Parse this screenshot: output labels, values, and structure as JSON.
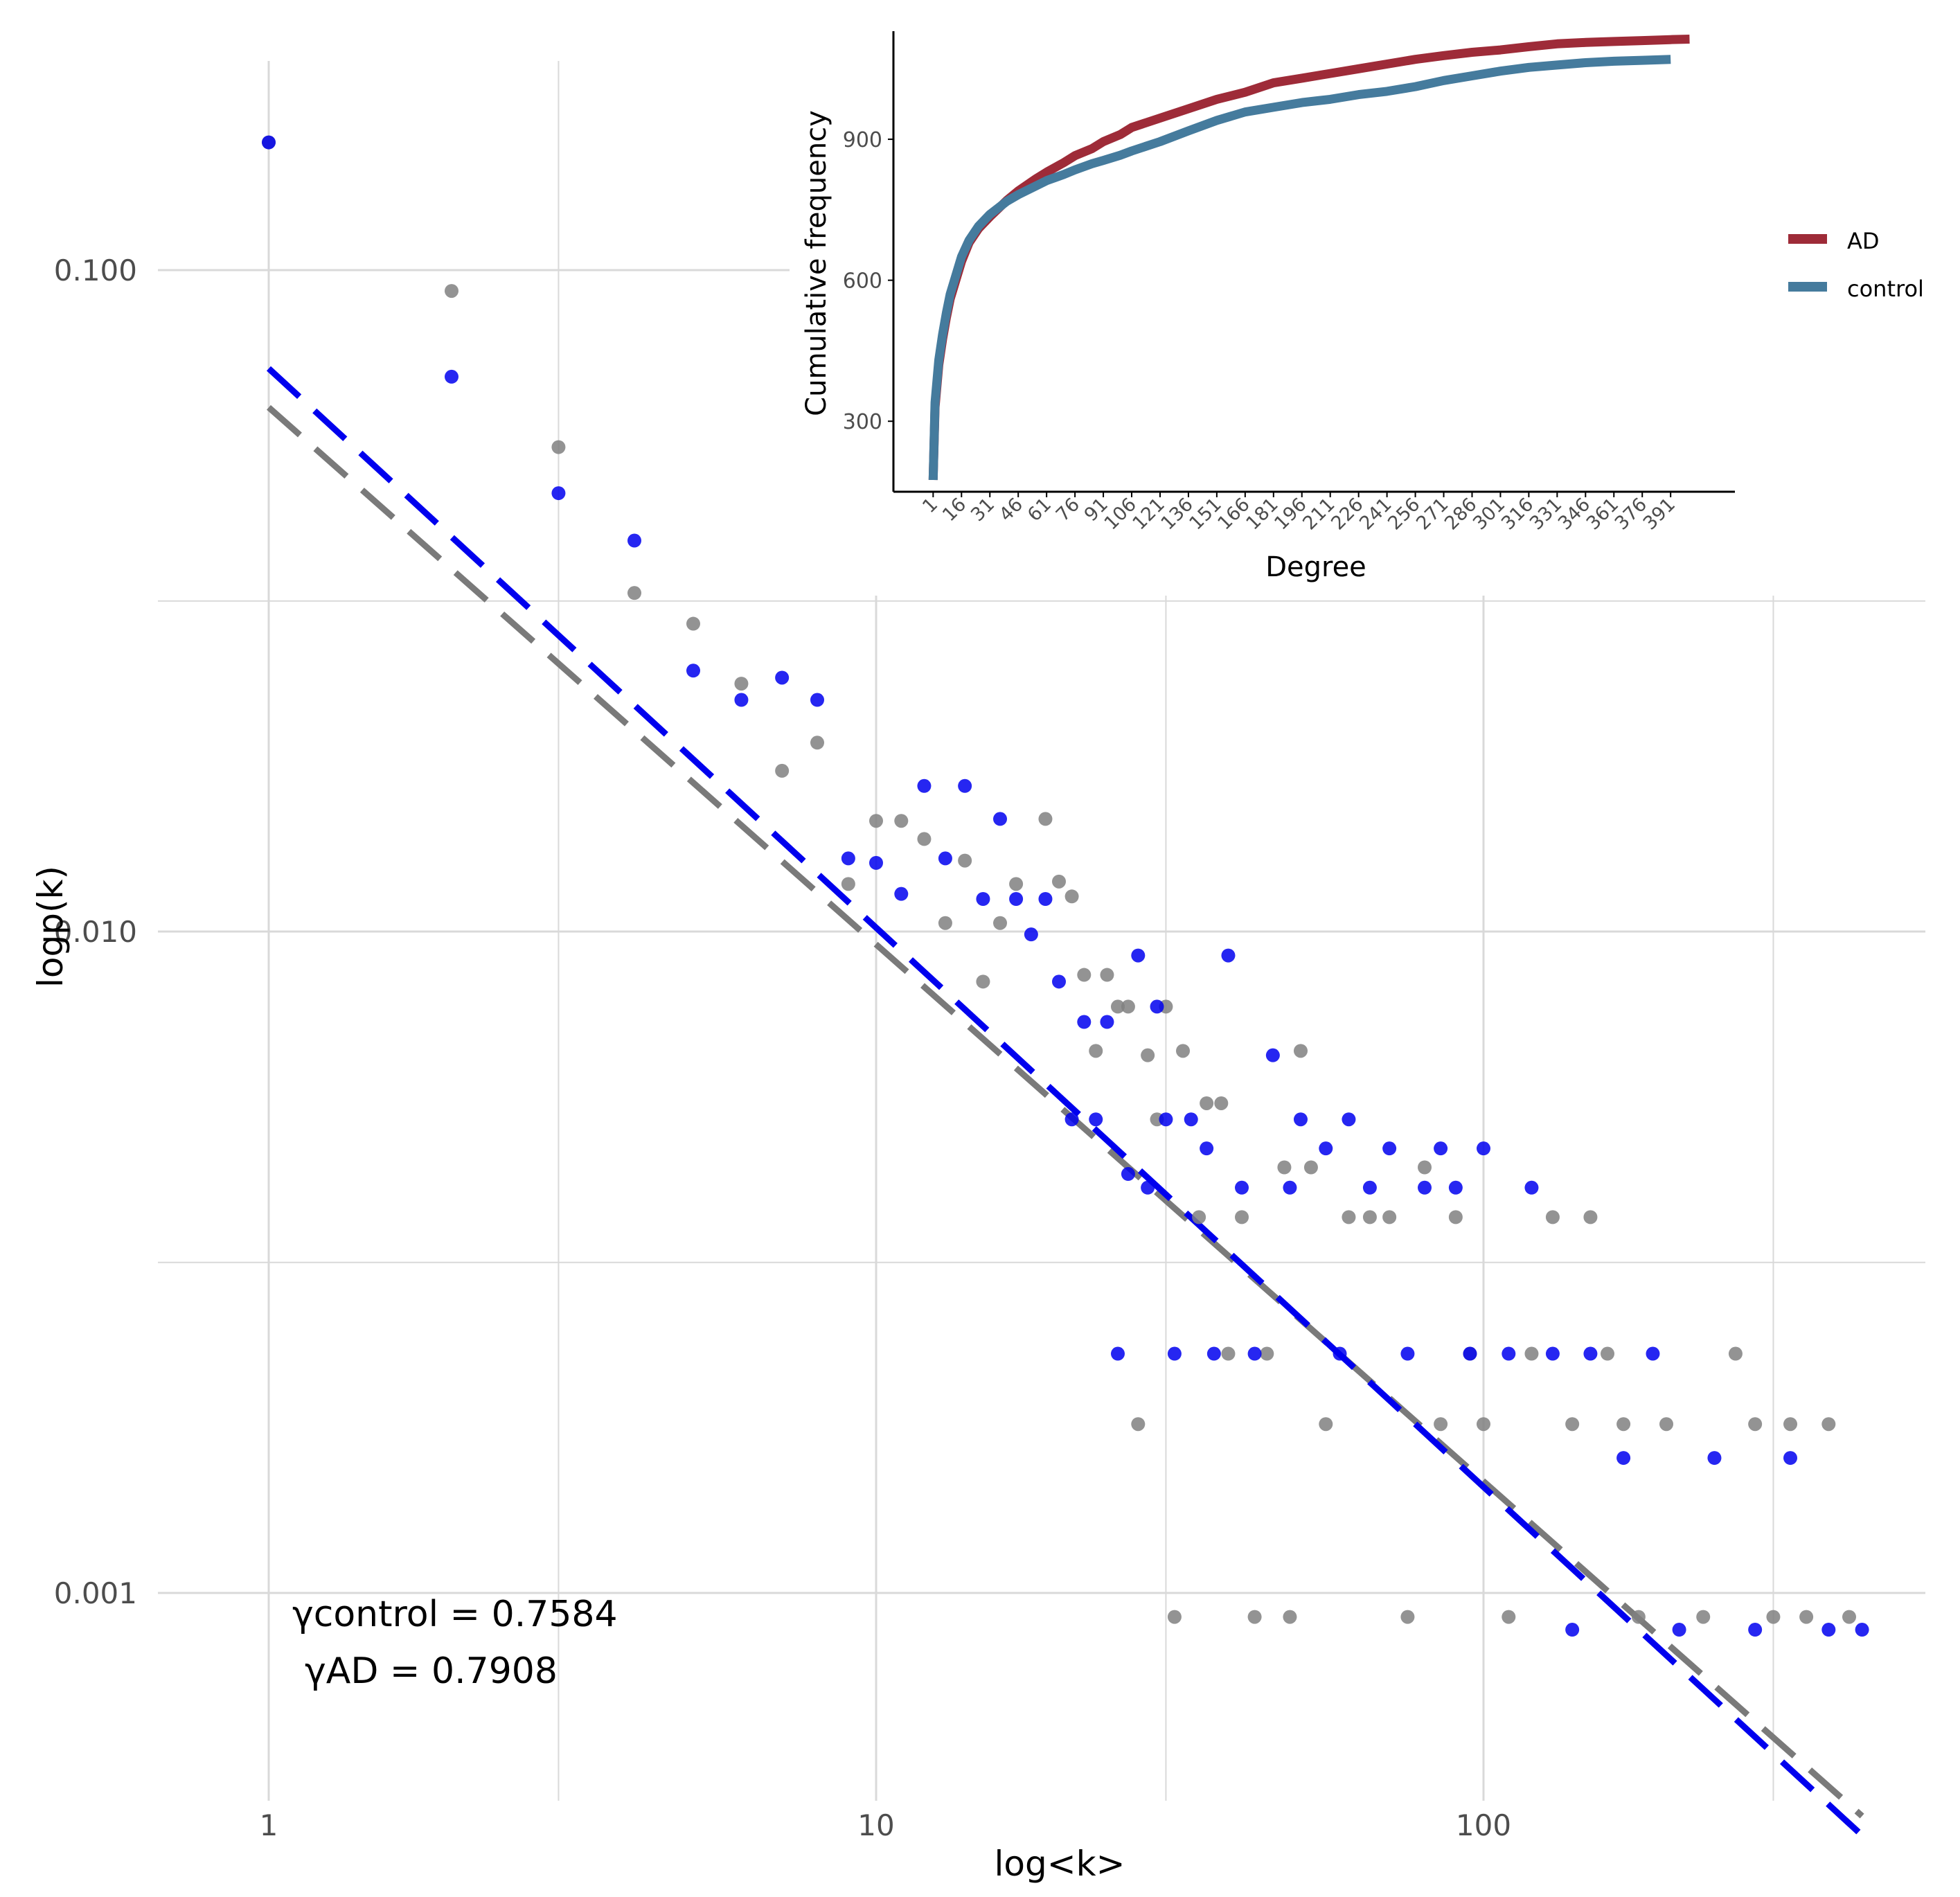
{
  "colors": {
    "control_points": "#808080",
    "ad_points": "#0000ee",
    "control_fit": "#7a7a7a",
    "ad_fit": "#0000ee",
    "grid": "#d9d9d9",
    "axis": "#000000",
    "inset_ad": "#9e2b38",
    "inset_control": "#457b9d",
    "text_axis": "#4d4d4d"
  },
  "chart_data": [
    {
      "type": "scatter",
      "title": "",
      "xlabel": "log<k>",
      "ylabel": "logp(k)",
      "xscale": "log",
      "yscale": "log",
      "xlim": [
        0.8,
        500
      ],
      "ylim": [
        0.00035,
        0.21
      ],
      "x_ticks": [
        1,
        10,
        100
      ],
      "x_tick_labels": [
        "1",
        "10",
        "100"
      ],
      "y_ticks": [
        0.1,
        0.01,
        0.001
      ],
      "y_tick_labels": [
        "0.100",
        "0.010",
        "0.001"
      ],
      "annotations": [
        "γcontrol = 0.7584",
        "γAD = 0.7908"
      ],
      "series": [
        {
          "name": "control",
          "points": [
            [
              1,
              0.156
            ],
            [
              2,
              0.093
            ],
            [
              3,
              0.054
            ],
            [
              4,
              0.0325
            ],
            [
              5,
              0.0292
            ],
            [
              6,
              0.0237
            ],
            [
              7,
              0.0175
            ],
            [
              8,
              0.0193
            ],
            [
              9,
              0.0118
            ],
            [
              10,
              0.0147
            ],
            [
              11,
              0.0147
            ],
            [
              12,
              0.0138
            ],
            [
              13,
              0.0103
            ],
            [
              14,
              0.0128
            ],
            [
              15,
              0.0084
            ],
            [
              16,
              0.0103
            ],
            [
              17,
              0.0118
            ],
            [
              19,
              0.0148
            ],
            [
              20,
              0.0119
            ],
            [
              21,
              0.0113
            ],
            [
              22,
              0.0086
            ],
            [
              23,
              0.0066
            ],
            [
              24,
              0.0086
            ],
            [
              25,
              0.0077
            ],
            [
              26,
              0.0077
            ],
            [
              27,
              0.0018
            ],
            [
              28,
              0.0065
            ],
            [
              29,
              0.0052
            ],
            [
              30,
              0.0077
            ],
            [
              31,
              0.00092
            ],
            [
              32,
              0.0066
            ],
            [
              34,
              0.0037
            ],
            [
              35,
              0.0055
            ],
            [
              37,
              0.0055
            ],
            [
              38,
              0.0023
            ],
            [
              40,
              0.0037
            ],
            [
              42,
              0.00092
            ],
            [
              44,
              0.0023
            ],
            [
              47,
              0.0044
            ],
            [
              48,
              0.00092
            ],
            [
              50,
              0.0066
            ],
            [
              52,
              0.0044
            ],
            [
              55,
              0.0018
            ],
            [
              60,
              0.0037
            ],
            [
              65,
              0.0037
            ],
            [
              70,
              0.0037
            ],
            [
              75,
              0.00092
            ],
            [
              80,
              0.0044
            ],
            [
              85,
              0.0018
            ],
            [
              90,
              0.0037
            ],
            [
              95,
              0.0023
            ],
            [
              100,
              0.0018
            ],
            [
              110,
              0.00092
            ],
            [
              120,
              0.0023
            ],
            [
              130,
              0.0037
            ],
            [
              140,
              0.0018
            ],
            [
              150,
              0.0037
            ],
            [
              160,
              0.0023
            ],
            [
              170,
              0.0018
            ],
            [
              180,
              0.00092
            ],
            [
              200,
              0.0018
            ],
            [
              230,
              0.00092
            ],
            [
              260,
              0.0023
            ],
            [
              280,
              0.0018
            ],
            [
              300,
              0.00092
            ],
            [
              320,
              0.0018
            ],
            [
              340,
              0.00092
            ],
            [
              370,
              0.0018
            ],
            [
              400,
              0.00092
            ]
          ]
        },
        {
          "name": "AD",
          "points": [
            [
              1,
              0.156
            ],
            [
              2,
              0.069
            ],
            [
              3,
              0.046
            ],
            [
              4,
              0.039
            ],
            [
              5,
              0.0248
            ],
            [
              6,
              0.0224
            ],
            [
              7,
              0.0242
            ],
            [
              8,
              0.0224
            ],
            [
              9,
              0.0129
            ],
            [
              10,
              0.0127
            ],
            [
              11,
              0.0114
            ],
            [
              12,
              0.0166
            ],
            [
              13,
              0.0129
            ],
            [
              14,
              0.0166
            ],
            [
              15,
              0.0112
            ],
            [
              16,
              0.0148
            ],
            [
              17,
              0.0112
            ],
            [
              18,
              0.0099
            ],
            [
              19,
              0.0112
            ],
            [
              20,
              0.0084
            ],
            [
              21,
              0.0052
            ],
            [
              22,
              0.0073
            ],
            [
              23,
              0.0052
            ],
            [
              24,
              0.0073
            ],
            [
              25,
              0.0023
            ],
            [
              26,
              0.0043
            ],
            [
              27,
              0.0092
            ],
            [
              28,
              0.0041
            ],
            [
              29,
              0.0077
            ],
            [
              30,
              0.0052
            ],
            [
              31,
              0.0023
            ],
            [
              33,
              0.0052
            ],
            [
              35,
              0.0047
            ],
            [
              36,
              0.0023
            ],
            [
              38,
              0.0092
            ],
            [
              40,
              0.0041
            ],
            [
              42,
              0.0023
            ],
            [
              45,
              0.0065
            ],
            [
              48,
              0.0041
            ],
            [
              50,
              0.0052
            ],
            [
              55,
              0.0047
            ],
            [
              58,
              0.0023
            ],
            [
              60,
              0.0052
            ],
            [
              65,
              0.0041
            ],
            [
              70,
              0.0047
            ],
            [
              75,
              0.0023
            ],
            [
              80,
              0.0041
            ],
            [
              85,
              0.0047
            ],
            [
              90,
              0.0041
            ],
            [
              95,
              0.0023
            ],
            [
              100,
              0.0047
            ],
            [
              110,
              0.0023
            ],
            [
              120,
              0.0041
            ],
            [
              130,
              0.0023
            ],
            [
              140,
              0.00088
            ],
            [
              150,
              0.0023
            ],
            [
              170,
              0.0016
            ],
            [
              190,
              0.0023
            ],
            [
              210,
              0.00088
            ],
            [
              240,
              0.0016
            ],
            [
              280,
              0.00088
            ],
            [
              320,
              0.0016
            ],
            [
              370,
              0.00088
            ],
            [
              420,
              0.00088
            ]
          ]
        }
      ],
      "fit_lines": [
        {
          "name": "control fit",
          "x": [
            1,
            420
          ],
          "y": [
            0.062,
            0.00046
          ]
        },
        {
          "name": "AD fit",
          "x": [
            1,
            420
          ],
          "y": [
            0.071,
            0.00043
          ]
        }
      ]
    },
    {
      "type": "line",
      "title": "",
      "xlabel": "Degree",
      "ylabel": "Cumulative frequency",
      "xlim": [
        -20,
        425
      ],
      "ylim": [
        150,
        1130
      ],
      "x_tick_labels": [
        "1",
        "16",
        "31",
        "46",
        "61",
        "76",
        "91",
        "106",
        "121",
        "136",
        "151",
        "166",
        "181",
        "196",
        "211",
        "226",
        "241",
        "256",
        "271",
        "286",
        "301",
        "316",
        "331",
        "346",
        "361",
        "376",
        "391"
      ],
      "y_ticks": [
        300,
        600,
        900
      ],
      "y_tick_labels": [
        "300",
        "600",
        "900"
      ],
      "legend": [
        "AD",
        "control"
      ],
      "legend_position": "right",
      "series": [
        {
          "name": "AD",
          "x": [
            1,
            2,
            4,
            6,
            8,
            10,
            13,
            16,
            20,
            25,
            31,
            40,
            46,
            55,
            61,
            70,
            76,
            85,
            91,
            100,
            106,
            121,
            136,
            151,
            166,
            181,
            196,
            211,
            226,
            241,
            256,
            271,
            286,
            301,
            316,
            331,
            346,
            361,
            376,
            391,
            401
          ],
          "y": [
            175,
            330,
            420,
            475,
            520,
            560,
            600,
            640,
            680,
            710,
            735,
            770,
            790,
            815,
            830,
            850,
            865,
            880,
            895,
            910,
            925,
            945,
            965,
            985,
            1000,
            1020,
            1030,
            1040,
            1050,
            1060,
            1070,
            1078,
            1085,
            1090,
            1097,
            1103,
            1106,
            1108,
            1110,
            1112,
            1113
          ]
        },
        {
          "name": "control",
          "x": [
            1,
            2,
            4,
            6,
            8,
            10,
            13,
            16,
            20,
            25,
            31,
            40,
            46,
            55,
            61,
            70,
            76,
            85,
            91,
            100,
            106,
            121,
            136,
            151,
            166,
            181,
            196,
            211,
            226,
            241,
            256,
            271,
            286,
            301,
            316,
            331,
            346,
            361,
            376,
            391
          ],
          "y": [
            175,
            340,
            430,
            485,
            530,
            570,
            610,
            650,
            685,
            715,
            740,
            768,
            782,
            800,
            812,
            825,
            835,
            848,
            855,
            866,
            875,
            895,
            918,
            940,
            958,
            968,
            978,
            985,
            995,
            1002,
            1012,
            1025,
            1035,
            1045,
            1053,
            1058,
            1063,
            1066,
            1068,
            1070
          ]
        }
      ]
    }
  ]
}
